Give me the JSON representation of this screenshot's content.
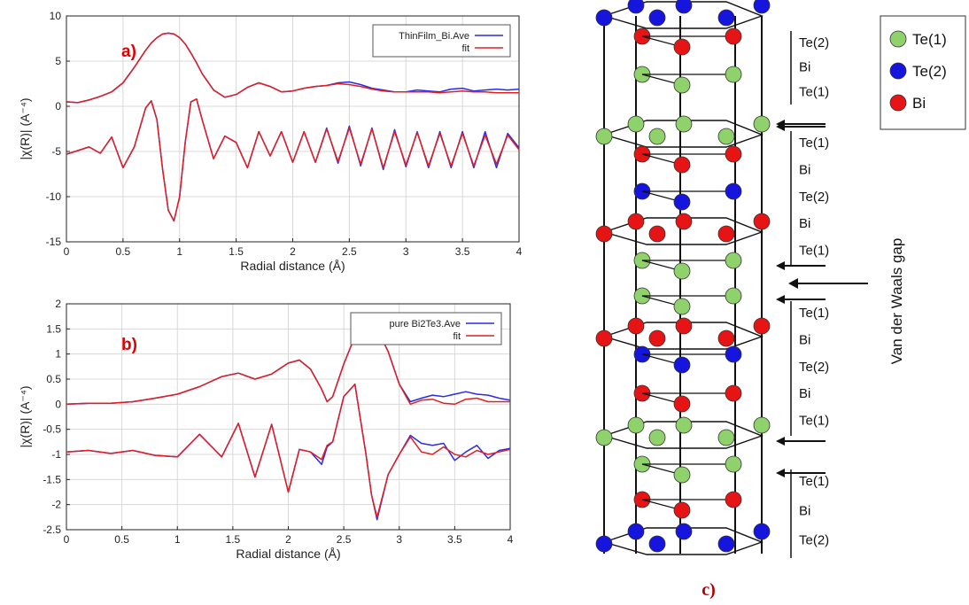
{
  "colors": {
    "data": "#2a2ae8",
    "fit": "#e02020",
    "panel_label": "#e00000",
    "te1": "#8fd16a",
    "te2": "#1515dd",
    "bi": "#e61414",
    "axis": "#222222",
    "grid": "#d8d8d8"
  },
  "chart_data": [
    {
      "type": "line",
      "panel_label": "a)",
      "xlabel": "Radial distance    (Å)",
      "ylabel": "|χ(R)|    (A⁻⁴)",
      "xlim": [
        0,
        4
      ],
      "ylim": [
        -15,
        10
      ],
      "xticks": [
        "0",
        "0.5",
        "1",
        "1.5",
        "2",
        "2.5",
        "3",
        "3.5",
        "4"
      ],
      "yticks": [
        "-15",
        "-10",
        "-5",
        "0",
        "5",
        "10"
      ],
      "grid": true,
      "legend_position": "top-right",
      "x": [
        0,
        0.1,
        0.2,
        0.3,
        0.4,
        0.5,
        0.6,
        0.7,
        0.75,
        0.8,
        0.85,
        0.9,
        0.95,
        1.0,
        1.05,
        1.1,
        1.15,
        1.2,
        1.3,
        1.4,
        1.5,
        1.6,
        1.7,
        1.8,
        1.9,
        2.0,
        2.1,
        2.2,
        2.3,
        2.4,
        2.5,
        2.6,
        2.7,
        2.8,
        2.9,
        3.0,
        3.1,
        3.2,
        3.3,
        3.4,
        3.5,
        3.6,
        3.7,
        3.8,
        3.9,
        4.0
      ],
      "series": [
        {
          "name": "ThinFilm_Bi.Ave",
          "color": "#2a2ae8",
          "values": [
            0.5,
            0.4,
            0.7,
            1.1,
            1.6,
            2.6,
            4.3,
            6.2,
            7.0,
            7.6,
            8.0,
            8.1,
            8.0,
            7.6,
            6.9,
            5.9,
            4.8,
            3.6,
            1.8,
            1.0,
            1.3,
            2.1,
            2.6,
            2.2,
            1.6,
            1.7,
            2.0,
            2.2,
            2.3,
            2.6,
            2.7,
            2.4,
            2.0,
            1.8,
            1.6,
            1.6,
            1.8,
            1.7,
            1.6,
            1.9,
            2.0,
            1.7,
            1.8,
            1.9,
            1.8,
            1.9
          ]
        },
        {
          "name": "fit",
          "color": "#e02020",
          "values": [
            0.5,
            0.4,
            0.7,
            1.1,
            1.6,
            2.6,
            4.3,
            6.2,
            7.0,
            7.6,
            8.0,
            8.1,
            8.0,
            7.6,
            6.9,
            5.9,
            4.8,
            3.6,
            1.8,
            1.0,
            1.3,
            2.1,
            2.6,
            2.2,
            1.6,
            1.7,
            2.0,
            2.2,
            2.3,
            2.5,
            2.4,
            2.2,
            1.9,
            1.7,
            1.6,
            1.6,
            1.6,
            1.6,
            1.5,
            1.6,
            1.7,
            1.6,
            1.6,
            1.5,
            1.5,
            1.5
          ]
        },
        {
          "name": "",
          "color": "#2a2ae8",
          "values": [
            -5.3,
            -4.9,
            -4.5,
            -5.2,
            -3.4,
            -6.8,
            -4.5,
            -0.2,
            0.6,
            -1.5,
            -7.0,
            -11.5,
            -12.7,
            -10.0,
            -4.0,
            0.5,
            0.8,
            -1.5,
            -5.8,
            -3.3,
            -4.0,
            -6.8,
            -2.8,
            -5.5,
            -2.8,
            -6.2,
            -2.8,
            -6.2,
            -2.4,
            -6.3,
            -2.2,
            -6.6,
            -2.4,
            -7.0,
            -2.6,
            -6.7,
            -2.8,
            -6.8,
            -2.8,
            -6.8,
            -2.8,
            -6.8,
            -2.8,
            -6.8,
            -3.0,
            -4.6
          ]
        },
        {
          "name": "",
          "color": "#e02020",
          "values": [
            -5.3,
            -4.9,
            -4.5,
            -5.2,
            -3.4,
            -6.8,
            -4.5,
            -0.2,
            0.6,
            -1.5,
            -7.0,
            -11.5,
            -12.7,
            -10.0,
            -4.0,
            0.5,
            0.8,
            -1.5,
            -5.8,
            -3.3,
            -4.0,
            -6.8,
            -2.8,
            -5.5,
            -2.8,
            -6.2,
            -2.8,
            -6.2,
            -2.5,
            -6.1,
            -2.4,
            -6.4,
            -2.5,
            -6.8,
            -2.8,
            -6.5,
            -2.9,
            -6.6,
            -3.0,
            -6.6,
            -3.0,
            -6.6,
            -3.2,
            -6.4,
            -3.2,
            -4.8
          ]
        }
      ]
    },
    {
      "type": "line",
      "panel_label": "b)",
      "xlabel": "Radial distance    (Å)",
      "ylabel": "|χ(R)|    (A⁻⁴)",
      "xlim": [
        0,
        4
      ],
      "ylim": [
        -2.5,
        2
      ],
      "xticks": [
        "0",
        "0.5",
        "1",
        "1.5",
        "2",
        "2.5",
        "3",
        "3.5",
        "4"
      ],
      "yticks": [
        "-2.5",
        "-2",
        "-1.5",
        "-1",
        "-0.5",
        "0",
        "0.5",
        "1",
        "1.5",
        "2"
      ],
      "grid": true,
      "legend_position": "top-right",
      "x": [
        0,
        0.2,
        0.4,
        0.6,
        0.8,
        1.0,
        1.2,
        1.4,
        1.55,
        1.7,
        1.85,
        2.0,
        2.1,
        2.2,
        2.3,
        2.35,
        2.4,
        2.5,
        2.6,
        2.7,
        2.75,
        2.8,
        2.9,
        3.0,
        3.1,
        3.2,
        3.3,
        3.4,
        3.5,
        3.6,
        3.7,
        3.8,
        3.9,
        4.0
      ],
      "series": [
        {
          "name": "pure Bi2Te3.Ave",
          "color": "#2a2ae8",
          "values": [
            0.0,
            0.02,
            0.02,
            0.05,
            0.12,
            0.2,
            0.35,
            0.55,
            0.62,
            0.5,
            0.6,
            0.82,
            0.88,
            0.7,
            0.3,
            0.05,
            0.15,
            0.8,
            1.35,
            1.56,
            1.58,
            1.5,
            1.05,
            0.4,
            0.05,
            0.12,
            0.18,
            0.15,
            0.2,
            0.25,
            0.2,
            0.18,
            0.12,
            0.08
          ]
        },
        {
          "name": "fit",
          "color": "#e02020",
          "values": [
            0.0,
            0.02,
            0.02,
            0.05,
            0.12,
            0.2,
            0.35,
            0.55,
            0.62,
            0.5,
            0.6,
            0.82,
            0.88,
            0.7,
            0.3,
            0.05,
            0.15,
            0.8,
            1.35,
            1.56,
            1.58,
            1.5,
            1.05,
            0.4,
            0.0,
            0.08,
            0.1,
            0.02,
            0.0,
            0.1,
            0.12,
            0.05,
            0.05,
            0.05
          ]
        },
        {
          "name": "",
          "color": "#2a2ae8",
          "values": [
            -0.95,
            -0.92,
            -0.98,
            -0.92,
            -1.02,
            -1.05,
            -0.6,
            -1.05,
            -0.38,
            -1.45,
            -0.4,
            -1.75,
            -0.9,
            -0.95,
            -1.2,
            -0.85,
            -0.75,
            0.15,
            0.4,
            -1.0,
            -1.8,
            -2.3,
            -1.4,
            -1.0,
            -0.62,
            -0.78,
            -0.82,
            -0.78,
            -1.12,
            -0.95,
            -0.82,
            -1.08,
            -0.92,
            -0.88
          ]
        },
        {
          "name": "",
          "color": "#e02020",
          "values": [
            -0.95,
            -0.92,
            -0.98,
            -0.92,
            -1.02,
            -1.05,
            -0.6,
            -1.05,
            -0.38,
            -1.45,
            -0.4,
            -1.75,
            -0.9,
            -0.95,
            -1.1,
            -0.82,
            -0.75,
            0.15,
            0.4,
            -1.0,
            -1.8,
            -2.25,
            -1.4,
            -1.0,
            -0.65,
            -0.95,
            -1.0,
            -0.85,
            -1.0,
            -1.05,
            -0.92,
            -1.0,
            -0.95,
            -0.9
          ]
        }
      ]
    }
  ],
  "structure": {
    "panel_label": "c)",
    "gap_label": "Van der Waals gap",
    "layer_labels": [
      [
        "Te(2)",
        "Bi",
        "Te(1)"
      ],
      [
        "Te(1)",
        "Bi",
        "Te(2)",
        "Bi",
        "Te(1)"
      ],
      [
        "Te(1)",
        "Bi",
        "Te(2)",
        "Bi",
        "Te(1)"
      ],
      [
        "Te(1)",
        "Bi",
        "Te(2)"
      ]
    ],
    "legend": [
      {
        "label": "Te(1)",
        "atom": "te1"
      },
      {
        "label": "Te(2)",
        "atom": "te2"
      },
      {
        "label": "Bi",
        "atom": "bi"
      }
    ],
    "atom_layers": [
      "te2",
      "bi",
      "te1",
      "te1",
      "bi",
      "te2",
      "bi",
      "te1",
      "te1",
      "bi",
      "te2",
      "bi",
      "te1",
      "te1",
      "bi",
      "te2"
    ]
  }
}
